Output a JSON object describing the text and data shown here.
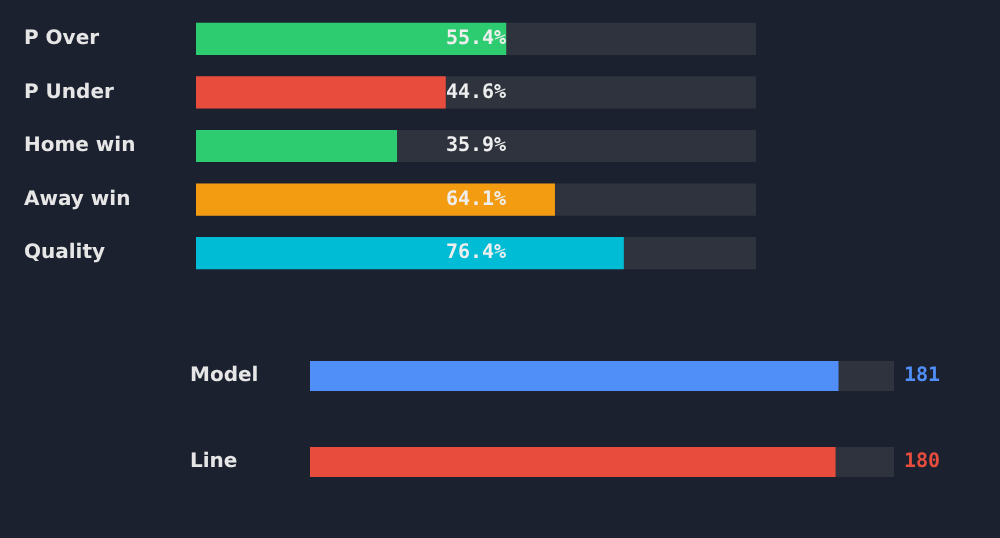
{
  "chart_data": [
    {
      "type": "bar",
      "orientation": "horizontal",
      "categories": [
        "P Over",
        "P Under",
        "Home win",
        "Away win",
        "Quality"
      ],
      "values": [
        55.4,
        44.6,
        35.9,
        64.1,
        76.4
      ],
      "colors": [
        "#2ecc71",
        "#e74c3c",
        "#2ecc71",
        "#f39c12",
        "#00bcd4"
      ],
      "value_labels": [
        "55.4%",
        "44.6%",
        "35.9%",
        "64.1%",
        "76.4%"
      ],
      "xlim": [
        0,
        100
      ],
      "tick_labels": "y"
    },
    {
      "type": "bar",
      "orientation": "horizontal",
      "categories": [
        "Model",
        "Line"
      ],
      "values": [
        181,
        180
      ],
      "colors": [
        "#4f8ff7",
        "#e74c3c"
      ],
      "data_labels": true,
      "tick_labels": "y"
    }
  ]
}
